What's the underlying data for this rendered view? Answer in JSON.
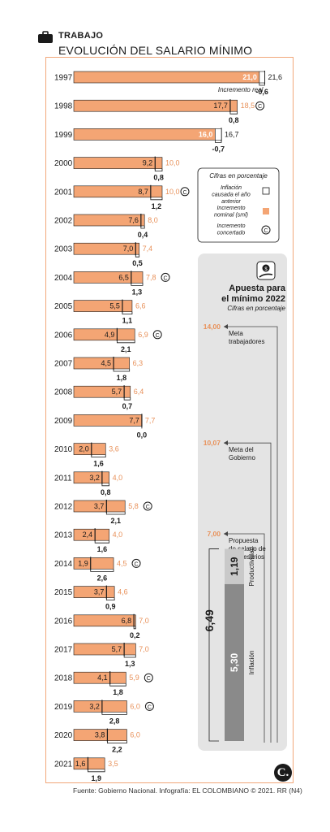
{
  "header": {
    "section": "TRABAJO",
    "title": "EVOLUCIÓN DEL SALARIO MÍNIMO"
  },
  "legend": {
    "note": "Cifras en porcentaje",
    "inflation": "Inflación causada el año anterior",
    "nominal": "Incremento nominal (sml)",
    "agreed": "Incremento concertado",
    "agreed_symbol": "C"
  },
  "annotation_real": "Incremento real",
  "chart_data": {
    "type": "bar",
    "categories": [
      "1997",
      "1998",
      "1999",
      "2000",
      "2001",
      "2002",
      "2003",
      "2004",
      "2005",
      "2006",
      "2007",
      "2008",
      "2009",
      "2010",
      "2011",
      "2012",
      "2013",
      "2014",
      "2015",
      "2016",
      "2017",
      "2018",
      "2019",
      "2020",
      "2021"
    ],
    "series": [
      {
        "name": "Incremento nominal (sml)",
        "values": [
          21.0,
          18.5,
          16.0,
          10.0,
          10.0,
          8.0,
          7.4,
          7.8,
          6.6,
          6.9,
          6.3,
          6.4,
          7.7,
          3.6,
          4.0,
          5.8,
          4.0,
          4.5,
          4.6,
          7.0,
          7.0,
          5.9,
          6.0,
          6.0,
          3.5
        ]
      },
      {
        "name": "Inflación causada el año anterior",
        "values": [
          21.6,
          17.7,
          16.7,
          9.2,
          8.7,
          7.6,
          7.0,
          6.5,
          5.5,
          4.9,
          4.5,
          5.7,
          7.7,
          2.0,
          3.2,
          3.7,
          2.4,
          1.9,
          3.7,
          6.8,
          5.7,
          4.1,
          3.2,
          3.8,
          1.6
        ]
      },
      {
        "name": "Incremento real",
        "values": [
          -0.6,
          0.8,
          -0.7,
          0.8,
          1.2,
          0.4,
          0.5,
          1.3,
          1.1,
          2.1,
          1.8,
          0.7,
          0.0,
          1.6,
          0.8,
          2.1,
          1.6,
          2.6,
          0.9,
          0.2,
          1.3,
          1.8,
          2.8,
          2.2,
          1.9
        ]
      }
    ],
    "nominal_labels": [
      "21,0",
      "18,5",
      "16,0",
      "10,0",
      "10,0",
      "8,0",
      "7,4",
      "7,8",
      "6,6",
      "6,9",
      "6,3",
      "6,4",
      "7,7",
      "3,6",
      "4,0",
      "5,8",
      "4,0",
      "4,5",
      "4,6",
      "7,0",
      "7,0",
      "5,9",
      "6,0",
      "6,0",
      "3,5"
    ],
    "inflation_labels": [
      "21,6",
      "17,7",
      "16,7",
      "9,2",
      "8,7",
      "7,6",
      "7,0",
      "6,5",
      "5,5",
      "4,9",
      "4,5",
      "5,7",
      "7,7",
      "2,0",
      "3,2",
      "3,7",
      "2,4",
      "1,9",
      "3,7",
      "6,8",
      "5,7",
      "4,1",
      "3,2",
      "3,8",
      "1,6"
    ],
    "real_labels": [
      "-0,6",
      "0,8",
      "-0,7",
      "0,8",
      "1,2",
      "0,4",
      "0,5",
      "1,3",
      "1,1",
      "2,1",
      "1,8",
      "0,7",
      "0,0",
      "1,6",
      "0,8",
      "2,1",
      "1,6",
      "2,6",
      "0,9",
      "0,2",
      "1,3",
      "1,8",
      "2,8",
      "2,2",
      "1,9"
    ],
    "concertado": [
      false,
      true,
      false,
      false,
      true,
      false,
      false,
      true,
      false,
      true,
      false,
      false,
      false,
      false,
      false,
      true,
      false,
      true,
      false,
      false,
      false,
      true,
      true,
      false,
      false
    ],
    "colors": {
      "nominal": "#f4a574",
      "nominal_text": "#e8915a",
      "dark": "#1a1a1a",
      "panel": "#e4e4e4",
      "inflation_bar": "#8a8a8a",
      "productivity_bar": "#c9c9c9"
    }
  },
  "panel": {
    "title_line1": "Apuesta para",
    "title_line2": "el mínimo 2022",
    "subtitle": "Cifras en porcentaje",
    "levels": [
      {
        "value": 14.0,
        "value_label": "14,00",
        "lines": [
          "Meta",
          "trabajadores"
        ]
      },
      {
        "value": 10.07,
        "value_label": "10,07",
        "lines": [
          "Meta del",
          "Gobierno"
        ]
      },
      {
        "value": 7.0,
        "value_label": "7,00",
        "lines": [
          "Propuesta",
          "de salario de",
          "empresarios"
        ]
      }
    ],
    "productivity": {
      "value": 1.19,
      "label": "1,19",
      "name": "Productividad"
    },
    "inflation": {
      "value": 5.3,
      "label": "5,30",
      "name": "Inflación"
    },
    "total_label": "6,49"
  },
  "source": "Fuente: Gobierno Nacional. Infografía: EL COLOMBIANO © 2021. RR (N4)",
  "logo_text": "C."
}
